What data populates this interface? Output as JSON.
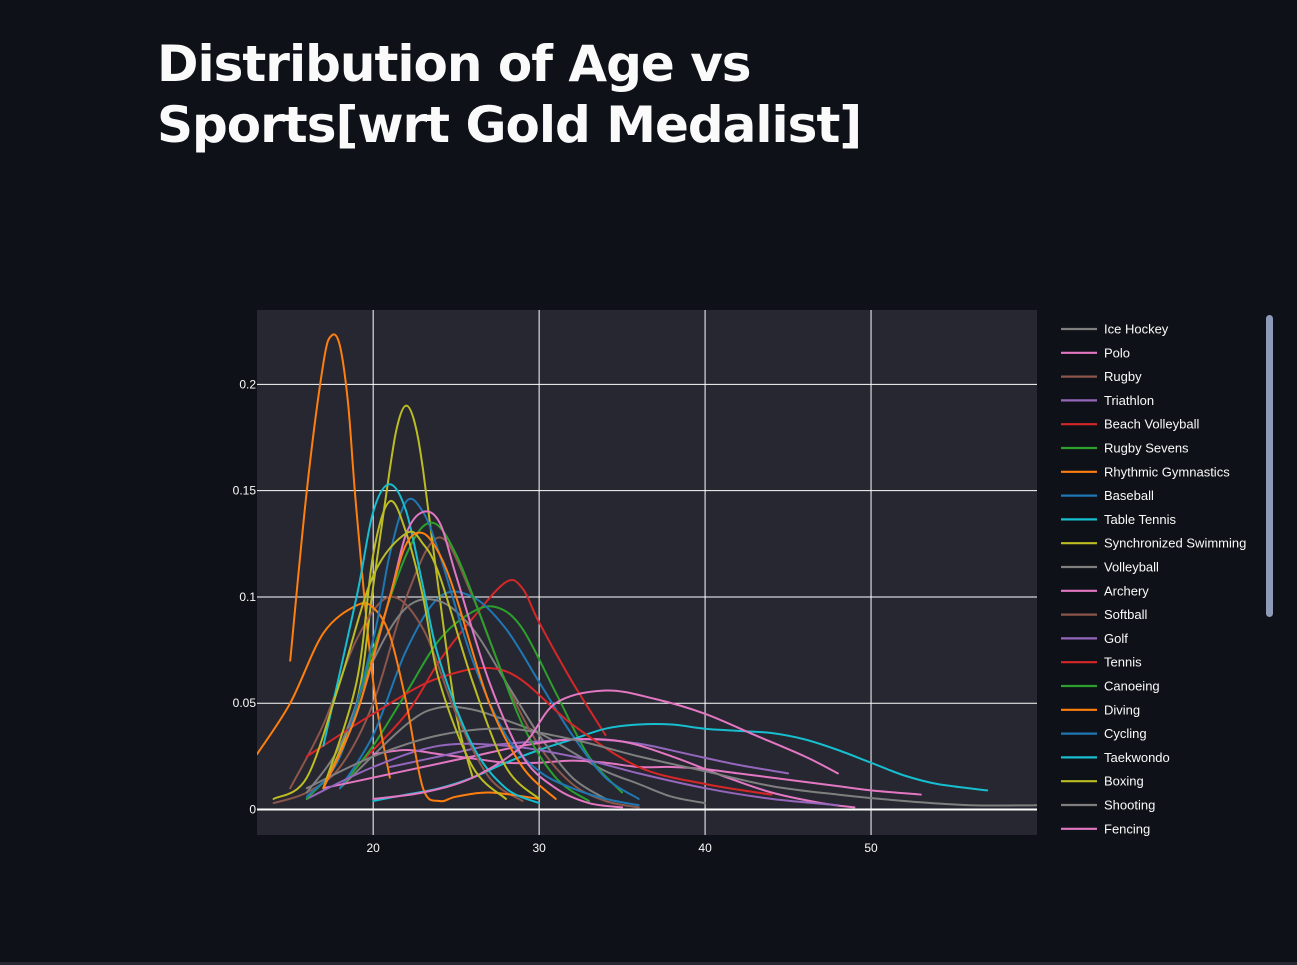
{
  "page": {
    "title": "Distribution of Age vs Sports[wrt Gold Medalist]"
  },
  "chart_data": {
    "type": "line",
    "title": "",
    "xlabel": "",
    "ylabel": "",
    "xlim": [
      13,
      60
    ],
    "ylim": [
      -0.012,
      0.235
    ],
    "xticks": [
      20,
      30,
      40,
      50
    ],
    "yticks": [
      0,
      0.05,
      0.1,
      0.15,
      0.2
    ],
    "ytick_labels": [
      "0",
      "0.05",
      "0.1",
      "0.15",
      "0.2"
    ],
    "grid": true,
    "legend_position": "right",
    "colors": {
      "page_bg": "#0e1117",
      "plot_bg": "#262730",
      "grid": "#ffffff",
      "text": "#fafafa"
    },
    "series": [
      {
        "name": "Ice Hockey",
        "color": "#7f7f7f",
        "x": [
          18,
          22,
          24,
          26,
          28,
          30,
          32,
          34,
          36,
          38,
          40
        ],
        "y": [
          0.01,
          0.04,
          0.048,
          0.047,
          0.042,
          0.036,
          0.027,
          0.018,
          0.012,
          0.006,
          0.003
        ]
      },
      {
        "name": "Polo",
        "color": "#e377c2",
        "x": [
          20,
          22,
          24,
          26,
          28,
          30,
          32,
          34,
          36,
          38,
          40,
          42,
          44,
          46,
          48,
          50,
          53
        ],
        "y": [
          0.026,
          0.028,
          0.026,
          0.024,
          0.022,
          0.022,
          0.023,
          0.022,
          0.02,
          0.02,
          0.019,
          0.017,
          0.015,
          0.013,
          0.011,
          0.009,
          0.007
        ]
      },
      {
        "name": "Rugby",
        "color": "#8c564b",
        "x": [
          14,
          16,
          18,
          20,
          22,
          24,
          26,
          28,
          30,
          32,
          34,
          36
        ],
        "y": [
          0.003,
          0.008,
          0.02,
          0.05,
          0.1,
          0.128,
          0.1,
          0.06,
          0.03,
          0.012,
          0.004,
          0.001
        ]
      },
      {
        "name": "Triathlon",
        "color": "#9467bd",
        "x": [
          21,
          24,
          27,
          30,
          33,
          36,
          39,
          42,
          45
        ],
        "y": [
          0.02,
          0.025,
          0.03,
          0.032,
          0.033,
          0.031,
          0.026,
          0.021,
          0.017
        ]
      },
      {
        "name": "Beach Volleyball",
        "color": "#d62728",
        "x": [
          19,
          22,
          24,
          26,
          28,
          29,
          30,
          32,
          34
        ],
        "y": [
          0.02,
          0.045,
          0.07,
          0.09,
          0.107,
          0.104,
          0.088,
          0.06,
          0.035
        ]
      },
      {
        "name": "Rugby Sevens",
        "color": "#2ca02c",
        "x": [
          18,
          20,
          22,
          24,
          26,
          27.5,
          29,
          31,
          33,
          35
        ],
        "y": [
          0.01,
          0.03,
          0.055,
          0.08,
          0.093,
          0.095,
          0.085,
          0.055,
          0.025,
          0.008
        ]
      },
      {
        "name": "Rhythmic Gymnastics",
        "color": "#ff7f0e",
        "x": [
          15,
          16,
          17,
          17.5,
          18,
          18.5,
          19,
          20,
          21
        ],
        "y": [
          0.07,
          0.15,
          0.21,
          0.223,
          0.218,
          0.19,
          0.14,
          0.06,
          0.015
        ]
      },
      {
        "name": "Baseball",
        "color": "#1f77b4",
        "x": [
          18,
          20,
          22,
          24,
          26,
          28,
          30,
          32,
          34,
          36
        ],
        "y": [
          0.01,
          0.035,
          0.075,
          0.1,
          0.1,
          0.085,
          0.06,
          0.035,
          0.015,
          0.005
        ]
      },
      {
        "name": "Table Tennis",
        "color": "#17becf",
        "x": [
          20,
          22,
          24,
          26,
          28,
          30,
          32,
          34,
          36,
          38,
          40,
          42,
          44,
          46,
          48,
          50,
          52,
          54,
          57
        ],
        "y": [
          0.004,
          0.007,
          0.01,
          0.015,
          0.022,
          0.028,
          0.033,
          0.038,
          0.04,
          0.04,
          0.038,
          0.037,
          0.036,
          0.033,
          0.028,
          0.022,
          0.016,
          0.012,
          0.009
        ]
      },
      {
        "name": "Synchronized Swimming",
        "color": "#bcbd22",
        "x": [
          17,
          19,
          20,
          21,
          21.5,
          22,
          22.5,
          23,
          24,
          25,
          26
        ],
        "y": [
          0.01,
          0.05,
          0.105,
          0.16,
          0.182,
          0.19,
          0.182,
          0.16,
          0.1,
          0.045,
          0.015
        ]
      },
      {
        "name": "Volleyball",
        "color": "#7f7f7f",
        "x": [
          16,
          18,
          20,
          22,
          24,
          26,
          28,
          30,
          32,
          34
        ],
        "y": [
          0.008,
          0.03,
          0.07,
          0.095,
          0.098,
          0.085,
          0.06,
          0.035,
          0.015,
          0.005
        ]
      },
      {
        "name": "Archery",
        "color": "#e377c2",
        "x": [
          17,
          20,
          23,
          26,
          29,
          32,
          35,
          38,
          41,
          44,
          47,
          49
        ],
        "y": [
          0.01,
          0.015,
          0.02,
          0.025,
          0.03,
          0.033,
          0.032,
          0.025,
          0.016,
          0.008,
          0.003,
          0.001
        ]
      },
      {
        "name": "Softball",
        "color": "#8c564b",
        "x": [
          15,
          17,
          19,
          21,
          23,
          25,
          27,
          29
        ],
        "y": [
          0.01,
          0.04,
          0.08,
          0.1,
          0.085,
          0.045,
          0.015,
          0.004
        ]
      },
      {
        "name": "Golf",
        "color": "#9467bd",
        "x": [
          16,
          20,
          24,
          28,
          32,
          36,
          40,
          44,
          48
        ],
        "y": [
          0.005,
          0.02,
          0.03,
          0.03,
          0.025,
          0.017,
          0.01,
          0.005,
          0.002
        ]
      },
      {
        "name": "Tennis",
        "color": "#d62728",
        "x": [
          16,
          20,
          24,
          28,
          32,
          36,
          40,
          44
        ],
        "y": [
          0.025,
          0.045,
          0.062,
          0.065,
          0.04,
          0.02,
          0.012,
          0.007
        ]
      },
      {
        "name": "Canoeing",
        "color": "#2ca02c",
        "x": [
          16,
          18,
          20,
          22,
          23.5,
          25,
          27,
          29,
          31,
          33
        ],
        "y": [
          0.005,
          0.025,
          0.075,
          0.12,
          0.135,
          0.12,
          0.08,
          0.04,
          0.015,
          0.004
        ]
      },
      {
        "name": "Diving",
        "color": "#ff7f0e",
        "x": [
          13,
          15,
          17,
          19,
          20,
          21,
          22,
          23,
          24,
          25,
          27,
          30
        ],
        "y": [
          0.026,
          0.05,
          0.083,
          0.096,
          0.095,
          0.082,
          0.05,
          0.01,
          0.004,
          0.006,
          0.008,
          0.005
        ]
      },
      {
        "name": "Cycling",
        "color": "#1f77b4",
        "x": [
          16,
          18,
          20,
          21,
          22,
          23,
          24,
          26,
          28,
          30,
          32,
          34,
          36
        ],
        "y": [
          0.006,
          0.025,
          0.08,
          0.12,
          0.145,
          0.14,
          0.12,
          0.07,
          0.035,
          0.018,
          0.01,
          0.005,
          0.002
        ]
      },
      {
        "name": "Taekwondo",
        "color": "#17becf",
        "x": [
          17,
          19,
          20,
          21,
          22,
          23,
          24,
          26,
          28,
          30
        ],
        "y": [
          0.03,
          0.1,
          0.14,
          0.153,
          0.14,
          0.105,
          0.07,
          0.03,
          0.01,
          0.003
        ]
      },
      {
        "name": "Boxing",
        "color": "#bcbd22",
        "x": [
          14,
          16,
          18,
          20,
          22,
          23,
          24,
          26,
          28,
          30
        ],
        "y": [
          0.005,
          0.015,
          0.06,
          0.11,
          0.13,
          0.125,
          0.11,
          0.06,
          0.02,
          0.005
        ]
      },
      {
        "name": "Shooting",
        "color": "#7f7f7f",
        "x": [
          16,
          20,
          24,
          28,
          32,
          36,
          40,
          44,
          48,
          52,
          56,
          60
        ],
        "y": [
          0.01,
          0.025,
          0.035,
          0.038,
          0.033,
          0.025,
          0.018,
          0.011,
          0.007,
          0.004,
          0.002,
          0.002
        ]
      },
      {
        "name": "Fencing",
        "color": "#e377c2",
        "x": [
          17,
          19,
          21,
          22,
          23,
          24,
          25,
          27,
          29,
          31,
          33,
          35
        ],
        "y": [
          0.01,
          0.045,
          0.1,
          0.13,
          0.14,
          0.135,
          0.11,
          0.06,
          0.025,
          0.01,
          0.003,
          0.001
        ]
      },
      {
        "name": "",
        "color": "#e377c2",
        "x": [
          20,
          23,
          26,
          29,
          31,
          34,
          37,
          40,
          43,
          46,
          48
        ],
        "y": [
          0.005,
          0.008,
          0.015,
          0.03,
          0.05,
          0.056,
          0.052,
          0.045,
          0.035,
          0.025,
          0.017
        ]
      },
      {
        "name": "",
        "color": "#bcbd22",
        "x": [
          17,
          19,
          20,
          21,
          22,
          23,
          24,
          26,
          28
        ],
        "y": [
          0.01,
          0.06,
          0.12,
          0.145,
          0.13,
          0.1,
          0.06,
          0.02,
          0.005
        ]
      },
      {
        "name": "",
        "color": "#ff7f0e",
        "x": [
          17,
          19,
          21,
          22,
          23,
          24,
          25,
          27,
          29,
          31
        ],
        "y": [
          0.01,
          0.045,
          0.1,
          0.125,
          0.13,
          0.12,
          0.1,
          0.05,
          0.02,
          0.005
        ]
      }
    ]
  }
}
